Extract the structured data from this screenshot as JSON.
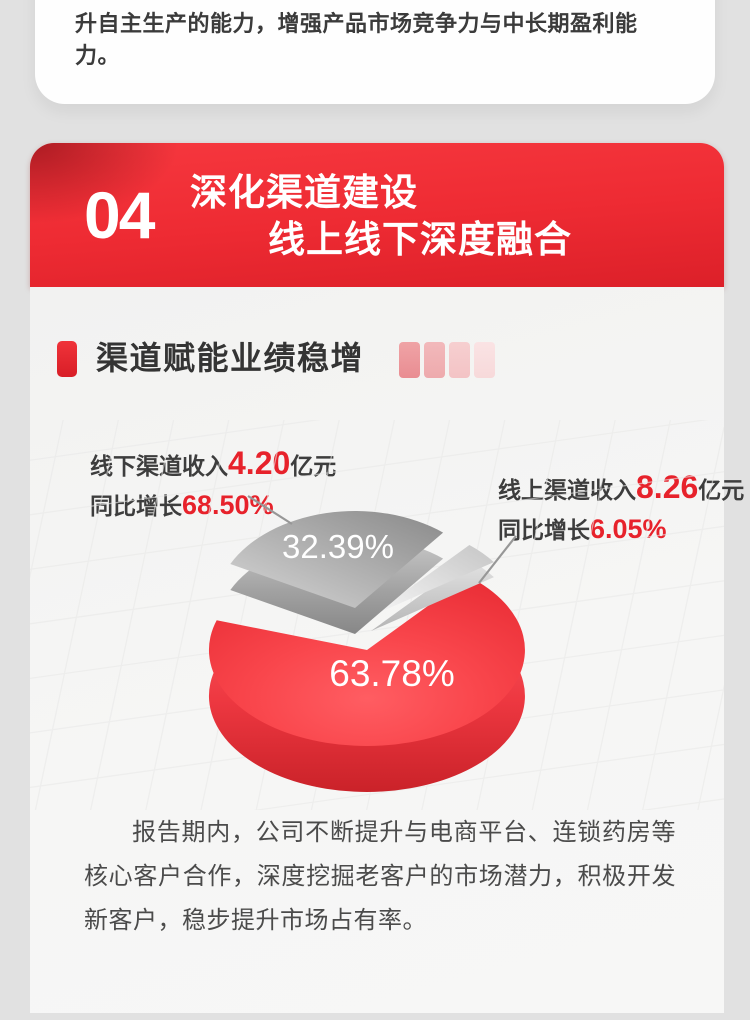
{
  "colors": {
    "red_accent": "#e7222b",
    "banner_gradient_top": "#f5363d",
    "banner_gradient_bottom": "#dc2029",
    "pie_online_red": "#f6434a",
    "pie_offline_gray": "#9b9b9b",
    "pie_other_light_gray": "#d9d9d9",
    "text_dark": "#383838",
    "text_body": "#4b4b4b",
    "decor_squares": [
      "#ec9ca0",
      "#f0b1b4",
      "#f4c9ca",
      "#f8dedf"
    ]
  },
  "top_card": {
    "text": "升自主生产的能力，增强产品市场竞争力与中长期盈利能力。"
  },
  "banner": {
    "number": "04",
    "title_line1": "深化渠道建设",
    "title_line2": "线上线下深度融合"
  },
  "section": {
    "title": "渠道赋能业绩稳增"
  },
  "labels": {
    "offline": {
      "prefix": "线下渠道收入",
      "value": "4.20",
      "unit": "亿元",
      "growth_prefix": "同比增长",
      "growth": "68.50%"
    },
    "online": {
      "prefix": "线上渠道收入",
      "value": "8.26",
      "unit": "亿元",
      "growth_prefix": "同比增长",
      "growth": "6.05%"
    }
  },
  "chart_data": {
    "type": "pie",
    "style": "3d exploded pie",
    "title": "渠道赋能业绩稳增",
    "unit": "%",
    "legend_position": "none",
    "labels_on_slices": true,
    "slices": [
      {
        "name": "线上渠道收入",
        "value": 63.78,
        "display": "63.78%",
        "color": "#f6434a",
        "revenue_yi_yuan": 8.26,
        "yoy_growth_pct": 6.05
      },
      {
        "name": "线下渠道收入",
        "value": 32.39,
        "display": "32.39%",
        "color": "#9b9b9b",
        "revenue_yi_yuan": 4.2,
        "yoy_growth_pct": 68.5
      },
      {
        "name": "",
        "value": 3.83,
        "display": "",
        "color": "#d9d9d9"
      }
    ]
  },
  "paragraph": {
    "text": "报告期内，公司不断提升与电商平台、连锁药房等核心客户合作，深度挖掘老客户的市场潜力，积极开发新客户，稳步提升市场占有率。"
  }
}
